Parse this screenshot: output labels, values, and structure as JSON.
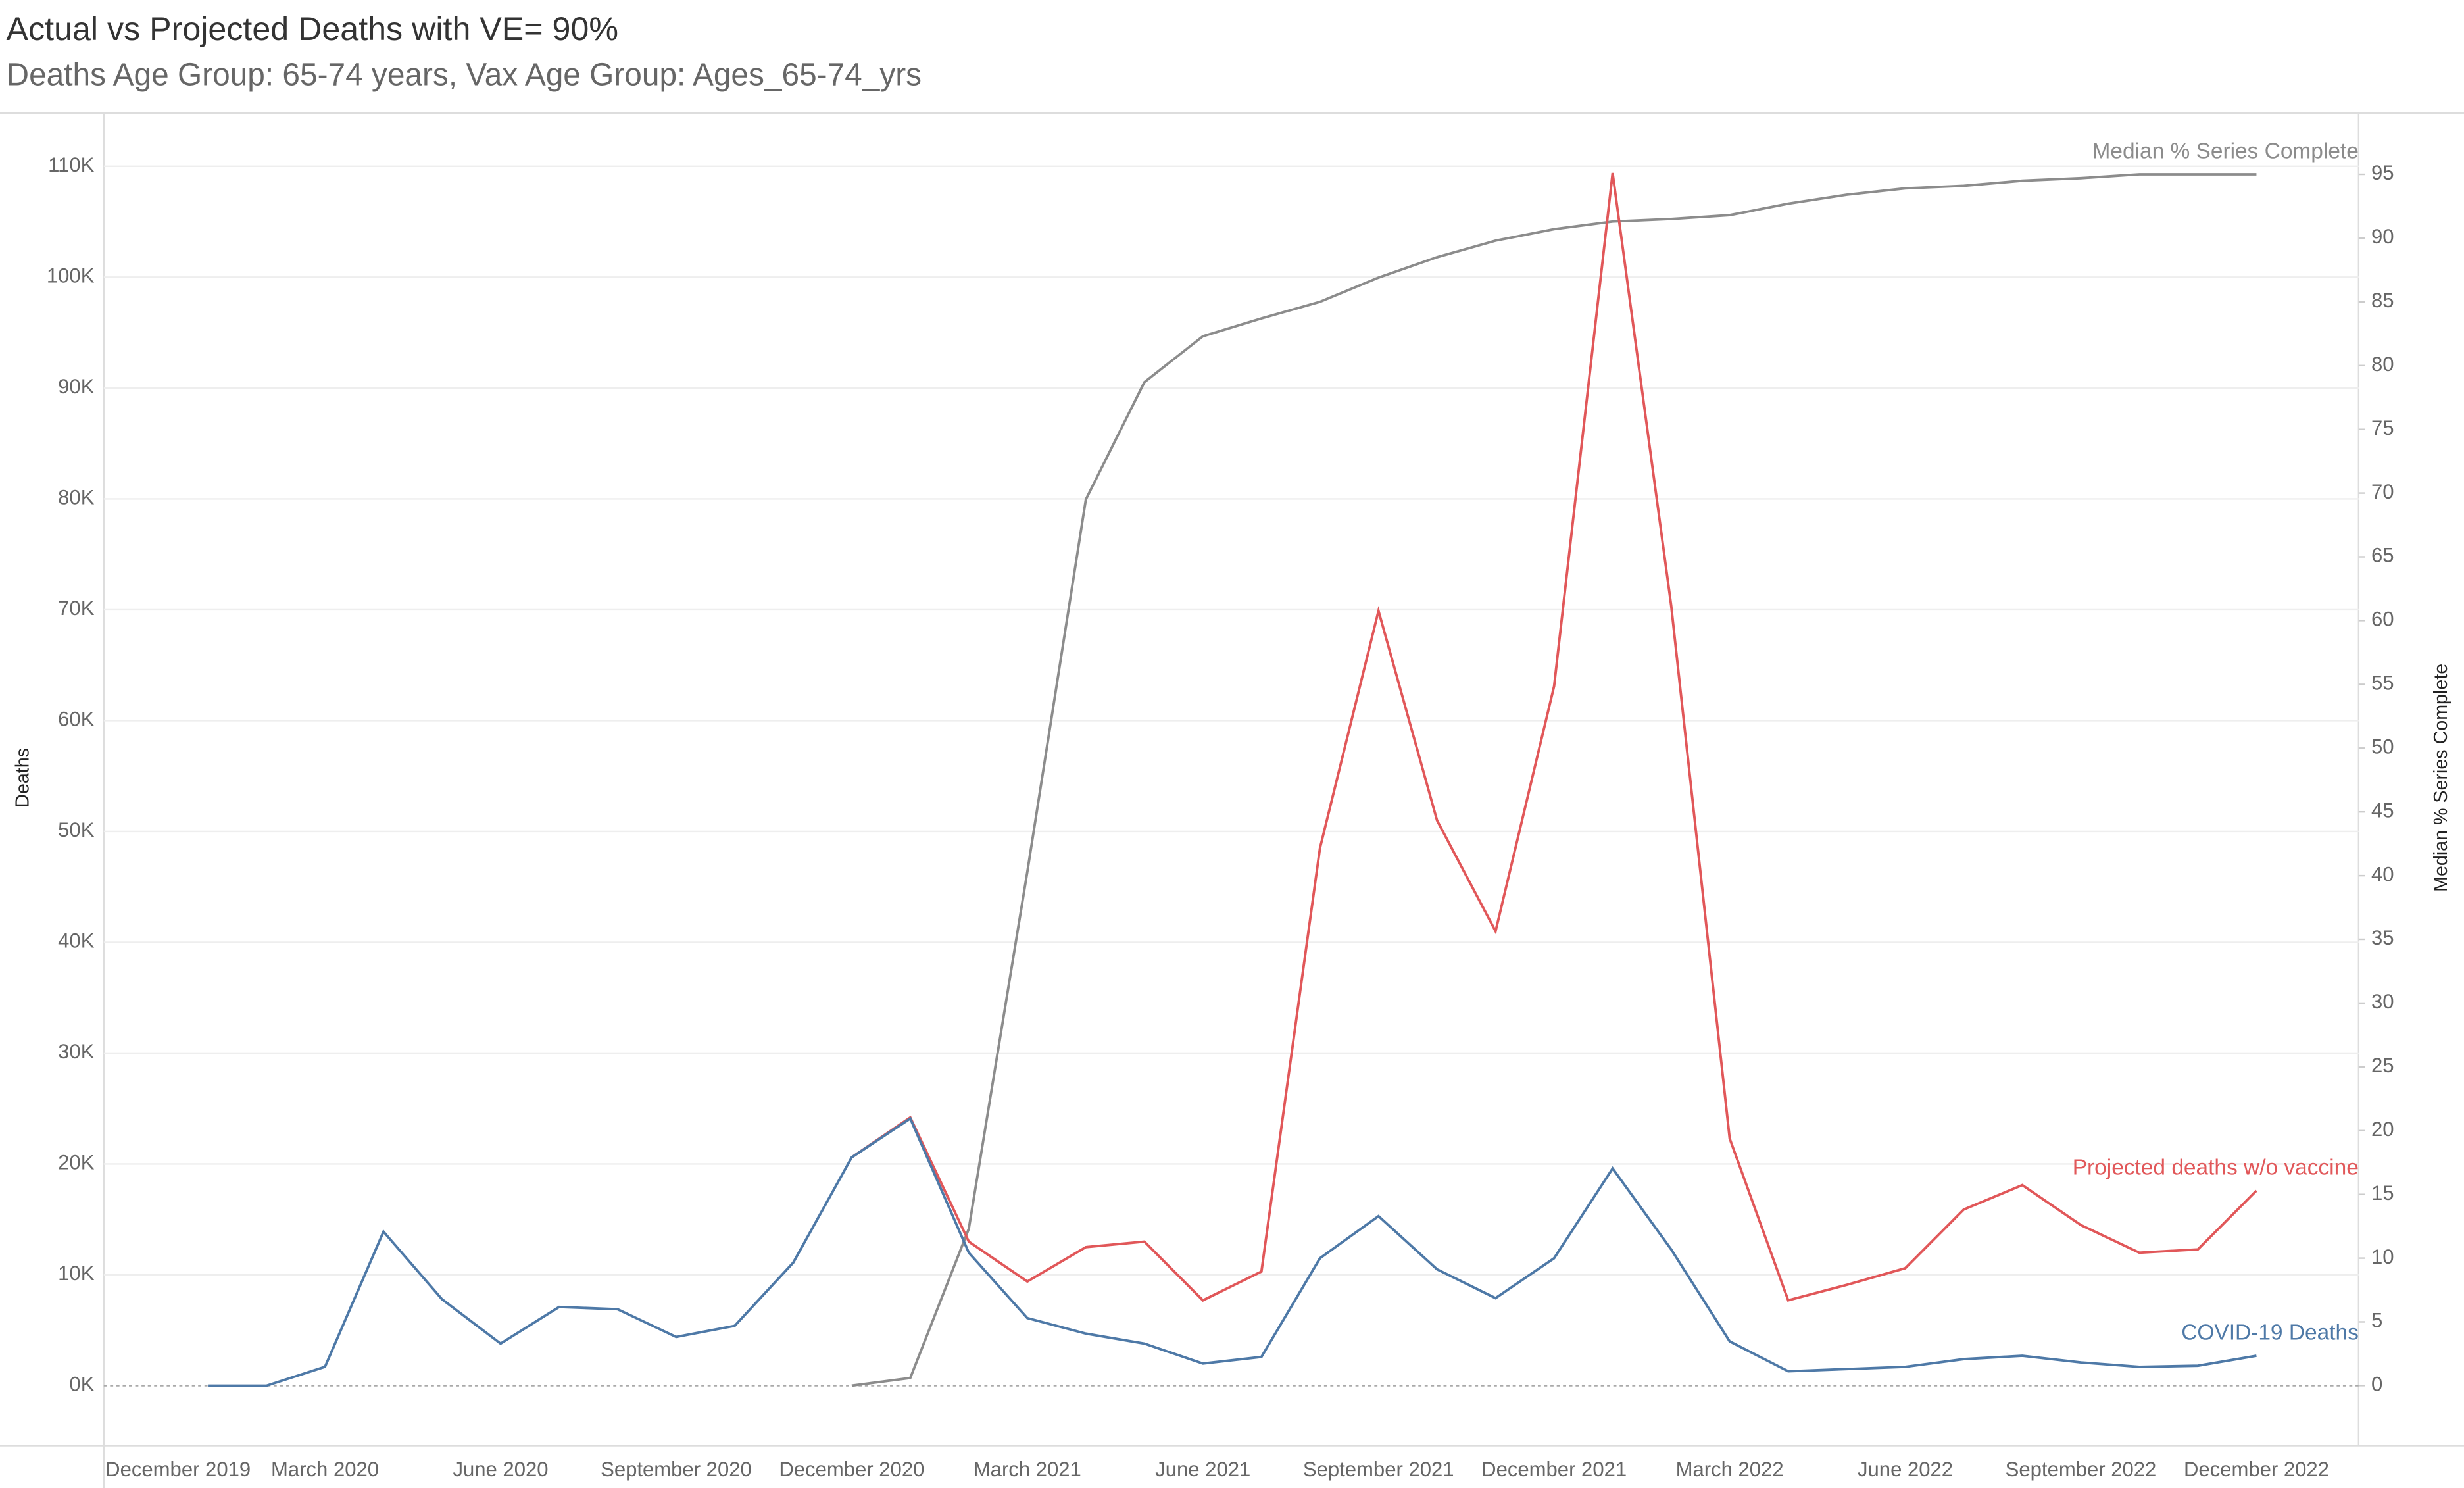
{
  "chart_data": {
    "type": "line",
    "title": "Actual vs Projected Deaths with VE= 90%",
    "subtitle": "Deaths Age Group: 65-74 years, Vax Age Group: Ages_65-74_yrs",
    "y_label": "Deaths",
    "y2_label": "Median % Series Complete",
    "categories": [
      "December 2019",
      null,
      null,
      "March 2020",
      null,
      null,
      "June 2020",
      null,
      null,
      "September 2020",
      null,
      null,
      "December 2020",
      null,
      null,
      "March 2021",
      null,
      null,
      "June 2021",
      null,
      null,
      "September 2021",
      null,
      null,
      "December 2021",
      null,
      null,
      "March 2022",
      null,
      null,
      "June 2022",
      null,
      null,
      "September 2022",
      null,
      null,
      "December 2022"
    ],
    "series": [
      {
        "name": "Median % Series Complete",
        "color": "#8c8c8c",
        "axis": "y2",
        "values": [
          null,
          null,
          null,
          null,
          null,
          null,
          null,
          null,
          null,
          null,
          null,
          null,
          0,
          0.6,
          12.3,
          40.3,
          69.5,
          78.7,
          82.3,
          83.7,
          85.0,
          86.9,
          88.5,
          89.8,
          90.7,
          91.3,
          91.5,
          91.8,
          92.7,
          93.4,
          93.9,
          94.1,
          94.5,
          94.7,
          95.0,
          95.0,
          95.0
        ]
      },
      {
        "name": "Projected deaths w/o vaccine",
        "color": "#e15759",
        "values": [
          null,
          null,
          null,
          null,
          null,
          null,
          null,
          null,
          null,
          null,
          null,
          null,
          20600,
          24200,
          13000,
          9400,
          12500,
          13000,
          7700,
          10300,
          48500,
          69900,
          51000,
          41000,
          63100,
          109400,
          70400,
          22300,
          7700,
          9100,
          10600,
          15900,
          18100,
          14500,
          12000,
          12300,
          17600
        ]
      },
      {
        "name": "COVID-19 Deaths",
        "color": "#4e79a7",
        "values": [
          null,
          0,
          0,
          1700,
          13900,
          7800,
          3800,
          7100,
          6900,
          4400,
          5400,
          11100,
          20600,
          24100,
          12000,
          6100,
          4700,
          3800,
          2000,
          2600,
          11500,
          15300,
          10500,
          7900,
          11500,
          19600,
          12300,
          4000,
          1300,
          1500,
          1700,
          2400,
          2700,
          2100,
          1700,
          1800,
          2700
        ]
      }
    ],
    "ylim": [
      -5400,
      114800
    ],
    "yticks": [
      {
        "value": 0,
        "label": "0K"
      },
      {
        "value": 10000,
        "label": "10K"
      },
      {
        "value": 20000,
        "label": "20K"
      },
      {
        "value": 30000,
        "label": "30K"
      },
      {
        "value": 40000,
        "label": "40K"
      },
      {
        "value": 50000,
        "label": "50K"
      },
      {
        "value": 60000,
        "label": "60K"
      },
      {
        "value": 70000,
        "label": "70K"
      },
      {
        "value": 80000,
        "label": "80K"
      },
      {
        "value": 90000,
        "label": "90K"
      },
      {
        "value": 100000,
        "label": "100K"
      },
      {
        "value": 110000,
        "label": "110K"
      }
    ],
    "y2lim": [
      -4.7,
      99.8
    ],
    "y2ticks": [
      0,
      5,
      10,
      15,
      20,
      25,
      30,
      35,
      40,
      45,
      50,
      55,
      60,
      65,
      70,
      75,
      80,
      85,
      90,
      95
    ],
    "grid": true
  }
}
